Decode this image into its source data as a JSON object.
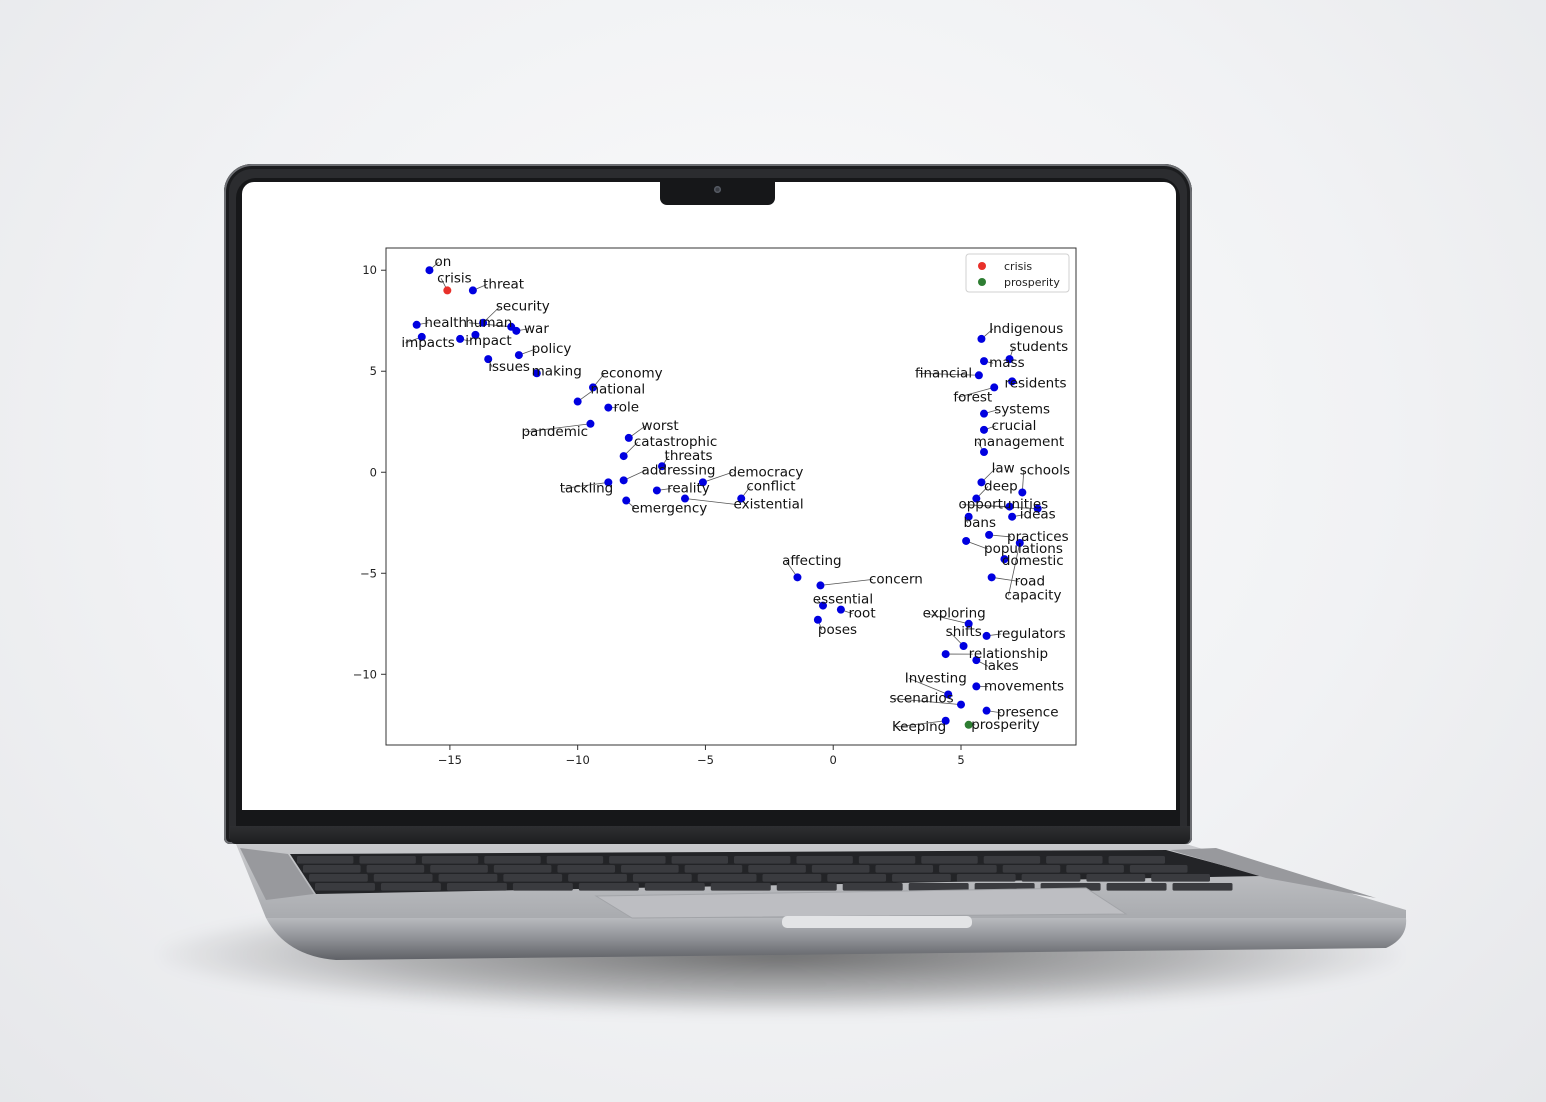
{
  "chart_data": {
    "type": "scatter",
    "title": "",
    "xlabel": "",
    "ylabel": "",
    "xlim": [
      -17.5,
      9.5
    ],
    "ylim": [
      -13.5,
      11.1
    ],
    "xticks": [
      -15,
      -10,
      -5,
      0,
      5
    ],
    "yticks": [
      10,
      5,
      0,
      -5,
      -10
    ],
    "xtick_labels": [
      "−15",
      "−10",
      "−5",
      "0",
      "5"
    ],
    "ytick_labels": [
      "10",
      "5",
      "0",
      "−5",
      "−10"
    ],
    "grid": false,
    "legend": {
      "placement": "top-right",
      "entries": [
        {
          "label": "crisis",
          "color": "#e8302a"
        },
        {
          "label": "prosperity",
          "color": "#2e7d32"
        }
      ]
    },
    "default_point_color": "#0000e0",
    "points": [
      {
        "label": "on",
        "x": -15.8,
        "y": 10.0,
        "lx": -15.6,
        "ly": 10.2
      },
      {
        "label": "crisis",
        "x": -15.1,
        "y": 9.0,
        "lx": -15.5,
        "ly": 9.4,
        "color": "#e8302a"
      },
      {
        "label": "threat",
        "x": -14.1,
        "y": 9.0,
        "lx": -13.7,
        "ly": 9.1
      },
      {
        "label": "security",
        "x": -13.7,
        "y": 7.4,
        "lx": -13.2,
        "ly": 8.0
      },
      {
        "label": "health",
        "x": -16.3,
        "y": 7.3,
        "lx": -16.0,
        "ly": 7.2
      },
      {
        "label": "human",
        "x": -12.6,
        "y": 7.2,
        "lx": -14.4,
        "ly": 7.2
      },
      {
        "label": "war",
        "x": -12.4,
        "y": 7.0,
        "lx": -12.1,
        "ly": 6.9
      },
      {
        "label": "impacts",
        "x": -16.1,
        "y": 6.7,
        "lx": -16.9,
        "ly": 6.2
      },
      {
        "label": "impact",
        "x": -14.6,
        "y": 6.6,
        "lx": -14.4,
        "ly": 6.3
      },
      {
        "label": "impact",
        "x": -14.0,
        "y": 6.8,
        "lx": -14.4,
        "ly": 6.3
      },
      {
        "label": "policy",
        "x": -12.3,
        "y": 5.8,
        "lx": -11.8,
        "ly": 5.9
      },
      {
        "label": "issues",
        "x": -13.5,
        "y": 5.6,
        "lx": -13.5,
        "ly": 5.0
      },
      {
        "label": "making",
        "x": -11.6,
        "y": 4.9,
        "lx": -11.8,
        "ly": 4.8
      },
      {
        "label": "economy",
        "x": -9.4,
        "y": 4.2,
        "lx": -9.1,
        "ly": 4.7
      },
      {
        "label": "national",
        "x": -10.0,
        "y": 3.5,
        "lx": -9.5,
        "ly": 3.9
      },
      {
        "label": "role",
        "x": -8.8,
        "y": 3.2,
        "lx": -8.6,
        "ly": 3.0
      },
      {
        "label": "pandemic",
        "x": -9.5,
        "y": 2.4,
        "lx": -12.2,
        "ly": 1.8
      },
      {
        "label": "worst",
        "x": -8.0,
        "y": 1.7,
        "lx": -7.5,
        "ly": 2.1
      },
      {
        "label": "catastrophic",
        "x": -8.2,
        "y": 0.8,
        "lx": -7.8,
        "ly": 1.3
      },
      {
        "label": "threats",
        "x": -6.7,
        "y": 0.3,
        "lx": -6.6,
        "ly": 0.6
      },
      {
        "label": "addressing",
        "x": -8.2,
        "y": -0.4,
        "lx": -7.5,
        "ly": -0.1
      },
      {
        "label": "democracy",
        "x": -5.1,
        "y": -0.5,
        "lx": -4.1,
        "ly": -0.2
      },
      {
        "label": "tackling",
        "x": -8.8,
        "y": -0.5,
        "lx": -10.7,
        "ly": -1.0
      },
      {
        "label": "reality",
        "x": -6.9,
        "y": -0.9,
        "lx": -6.5,
        "ly": -1.0
      },
      {
        "label": "conflict",
        "x": -3.6,
        "y": -1.3,
        "lx": -3.4,
        "ly": -0.9
      },
      {
        "label": "emergency",
        "x": -8.1,
        "y": -1.4,
        "lx": -7.9,
        "ly": -2.0
      },
      {
        "label": "existential",
        "x": -5.8,
        "y": -1.3,
        "lx": -3.9,
        "ly": -1.8
      },
      {
        "label": "Indigenous",
        "x": 5.8,
        "y": 6.6,
        "lx": 6.1,
        "ly": 6.9
      },
      {
        "label": "students",
        "x": 6.9,
        "y": 5.6,
        "lx": 6.9,
        "ly": 6.0
      },
      {
        "label": "mass",
        "x": 5.9,
        "y": 5.5,
        "lx": 6.1,
        "ly": 5.2
      },
      {
        "label": "financial",
        "x": 5.7,
        "y": 4.8,
        "lx": 3.2,
        "ly": 4.7
      },
      {
        "label": "residents",
        "x": 7.0,
        "y": 4.5,
        "lx": 6.7,
        "ly": 4.2
      },
      {
        "label": "forest",
        "x": 6.3,
        "y": 4.2,
        "lx": 4.7,
        "ly": 3.5
      },
      {
        "label": "systems",
        "x": 5.9,
        "y": 2.9,
        "lx": 6.3,
        "ly": 2.9
      },
      {
        "label": "crucial",
        "x": 5.9,
        "y": 2.1,
        "lx": 6.2,
        "ly": 2.1
      },
      {
        "label": "management",
        "x": 5.9,
        "y": 1.0,
        "lx": 5.5,
        "ly": 1.3
      },
      {
        "label": "law",
        "x": 5.8,
        "y": -0.5,
        "lx": 6.2,
        "ly": 0.0
      },
      {
        "label": "schools",
        "x": 7.4,
        "y": -1.0,
        "lx": 7.3,
        "ly": -0.1
      },
      {
        "label": "deep",
        "x": 5.6,
        "y": -1.3,
        "lx": 5.9,
        "ly": -0.9
      },
      {
        "label": "opportunities",
        "x": 6.9,
        "y": -1.7,
        "lx": 4.9,
        "ly": -1.8
      },
      {
        "label": "opportunities",
        "x": 8.0,
        "y": -1.8,
        "lx": 4.9,
        "ly": -1.8
      },
      {
        "label": "ideas",
        "x": 7.0,
        "y": -2.2,
        "lx": 7.3,
        "ly": -2.3
      },
      {
        "label": "bans",
        "x": 5.3,
        "y": -2.2,
        "lx": 5.1,
        "ly": -2.7
      },
      {
        "label": "practices",
        "x": 6.1,
        "y": -3.1,
        "lx": 6.8,
        "ly": -3.4
      },
      {
        "label": "populations",
        "x": 5.2,
        "y": -3.4,
        "lx": 5.9,
        "ly": -4.0
      },
      {
        "label": "domestic",
        "x": 6.7,
        "y": -4.3,
        "lx": 6.6,
        "ly": -4.6
      },
      {
        "label": "road",
        "x": 6.2,
        "y": -5.2,
        "lx": 7.1,
        "ly": -5.6
      },
      {
        "label": "capacity",
        "x": 7.3,
        "y": -3.5,
        "lx": 6.7,
        "ly": -6.3
      },
      {
        "label": "affecting",
        "x": -1.4,
        "y": -5.2,
        "lx": -2.0,
        "ly": -4.6
      },
      {
        "label": "concern",
        "x": -0.5,
        "y": -5.6,
        "lx": 1.4,
        "ly": -5.5
      },
      {
        "label": "essential",
        "x": -0.4,
        "y": -6.6,
        "lx": -0.8,
        "ly": -6.5
      },
      {
        "label": "root",
        "x": 0.3,
        "y": -6.8,
        "lx": 0.6,
        "ly": -7.2
      },
      {
        "label": "poses",
        "x": -0.6,
        "y": -7.3,
        "lx": -0.6,
        "ly": -8.0
      },
      {
        "label": "exploring",
        "x": 5.3,
        "y": -7.5,
        "lx": 3.5,
        "ly": -7.2
      },
      {
        "label": "regulators",
        "x": 6.0,
        "y": -8.1,
        "lx": 6.4,
        "ly": -8.2
      },
      {
        "label": "shifts",
        "x": 5.1,
        "y": -8.6,
        "lx": 4.4,
        "ly": -8.1
      },
      {
        "label": "relationship",
        "x": 4.4,
        "y": -9.0,
        "lx": 5.3,
        "ly": -9.2
      },
      {
        "label": "lakes",
        "x": 5.6,
        "y": -9.3,
        "lx": 5.9,
        "ly": -9.8
      },
      {
        "label": "Investing",
        "x": 4.5,
        "y": -11.0,
        "lx": 2.8,
        "ly": -10.4
      },
      {
        "label": "movements",
        "x": 5.6,
        "y": -10.6,
        "lx": 5.9,
        "ly": -10.8
      },
      {
        "label": "scenarios",
        "x": 5.0,
        "y": -11.5,
        "lx": 2.2,
        "ly": -11.4
      },
      {
        "label": "presence",
        "x": 6.0,
        "y": -11.8,
        "lx": 6.4,
        "ly": -12.1
      },
      {
        "label": "Keeping",
        "x": 4.4,
        "y": -12.3,
        "lx": 2.3,
        "ly": -12.8
      },
      {
        "label": "prosperity",
        "x": 5.3,
        "y": -12.5,
        "lx": 5.4,
        "ly": -12.7,
        "color": "#2e7d32"
      }
    ]
  }
}
